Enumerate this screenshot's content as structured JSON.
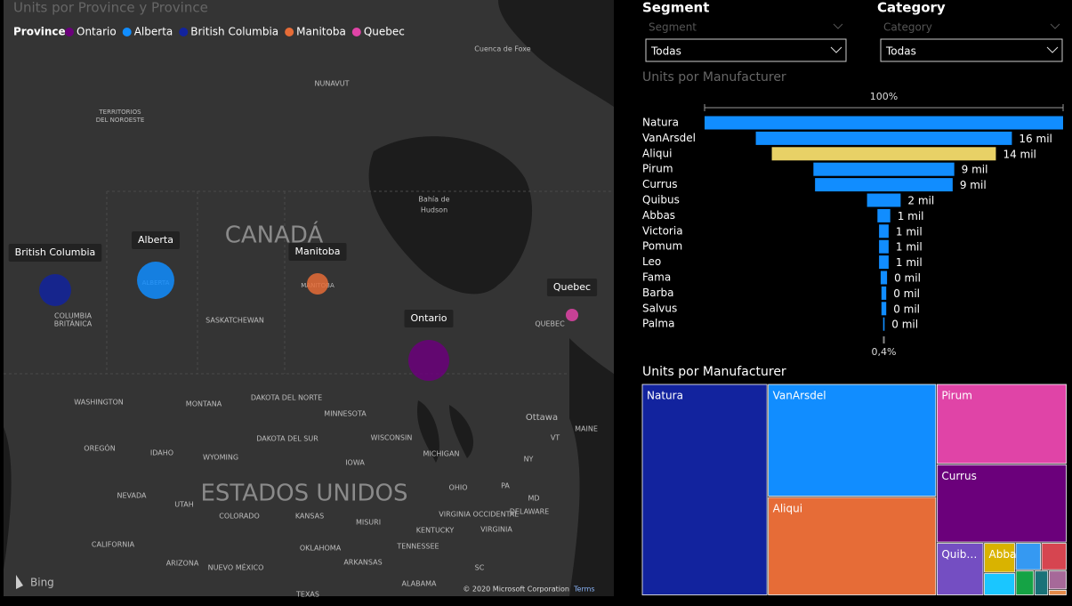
{
  "slicers": [
    {
      "title": "Segment",
      "placeholder": "Segment",
      "value": "Todas"
    },
    {
      "title": "Category",
      "placeholder": "Category",
      "value": "Todas"
    }
  ],
  "chart_data": [
    {
      "type": "map",
      "title": "Units por Province y Province",
      "legend_title": "Province",
      "series": [
        {
          "name": "Ontario",
          "color": "#6b007b",
          "value": 26.7
        },
        {
          "name": "Alberta",
          "color": "#118dff",
          "value": 22.2
        },
        {
          "name": "British Columbia",
          "color": "#12239e",
          "value": 16.3
        },
        {
          "name": "Manitoba",
          "color": "#e66c37",
          "value": 7.3
        },
        {
          "name": "Quebec",
          "color": "#e044a7",
          "value": 2.5
        }
      ],
      "map_labels": [
        "CANADÁ",
        "ESTADOS UNIDOS",
        "NUNAVUT",
        "TERRITORIOS",
        "DEL NOROESTE",
        "Cuenca de Foxe",
        "Bahía de",
        "Hudson",
        "SASKATCHEWAN",
        "COLUMBIA",
        "BRITÁNICA",
        "ALBERTA",
        "MANITOBA",
        "QUEBEC",
        "Ottawa",
        "WASHINGTON",
        "MONTANA",
        "DAKOTA DEL NORTE",
        "MINNESOTA",
        "DAKOTA DEL SUR",
        "WISCONSIN",
        "OREGÓN",
        "IDAHO",
        "WYOMING",
        "IOWA",
        "MICHIGAN",
        "NEVADA",
        "UTAH",
        "COLORADO",
        "KANSAS",
        "OHIO",
        "PA",
        "MISURI",
        "VIRGINIA OCCIDENTAL",
        "DELAWARE",
        "VIRGINIA",
        "KENTUCKY",
        "CALIFORNIA",
        "TENNESSEE",
        "OKLAHOMA",
        "ARIZONA",
        "NUEVO MÉXICO",
        "ARKANSAS",
        "SC",
        "ALABAMA",
        "TEXAS",
        "MAINE",
        "VT",
        "NY",
        "MD"
      ],
      "logo": "Bing",
      "attribution": "© 2020 Microsoft Corporation",
      "terms": "Terms"
    },
    {
      "type": "funnel",
      "title": "Units por Manufacturer",
      "color": "#118dff",
      "highlight_color": "#e8d166",
      "categories": [
        "Natura",
        "VanArsdel",
        "Aliqui",
        "Pirum",
        "Currus",
        "Quibus",
        "Abbas",
        "Victoria",
        "Pomum",
        "Leo",
        "Fama",
        "Barba",
        "Salvus",
        "Palma"
      ],
      "values": [
        22.4,
        16,
        14,
        8.8,
        8.6,
        2.1,
        0.8,
        0.6,
        0.6,
        0.6,
        0.4,
        0.3,
        0.3,
        0.09
      ],
      "value_labels": [
        null,
        "16 mil",
        "14 mil",
        "9 mil",
        "9 mil",
        "2 mil",
        "1 mil",
        "1 mil",
        "1 mil",
        "1 mil",
        "0 mil",
        "0 mil",
        "0 mil",
        "0 mil"
      ],
      "top_percent": {
        "value": 100,
        "label": "100%"
      },
      "bottom_percent": {
        "value": 0.4,
        "label": "0,4%"
      }
    },
    {
      "type": "treemap",
      "title": "Units por Manufacturer",
      "categories": [
        "Natura",
        "VanArsdel",
        "Aliqui",
        "Pirum",
        "Currus",
        "Quib…",
        "Abbas",
        null,
        null,
        null,
        null,
        null,
        null,
        null
      ],
      "values": [
        22.4,
        16,
        14,
        8.8,
        8.6,
        2.1,
        0.8,
        0.6,
        0.6,
        0.6,
        0.4,
        0.3,
        0.3,
        0.09
      ],
      "colors": [
        "#12239e",
        "#118dff",
        "#e66c37",
        "#e044a7",
        "#6b007b",
        "#744ec2",
        "#d9b300",
        "#1ac6ff",
        "#3599f2",
        "#d64550",
        "#15a345",
        "#197278",
        "#a66999",
        "#e38a4a"
      ]
    }
  ]
}
